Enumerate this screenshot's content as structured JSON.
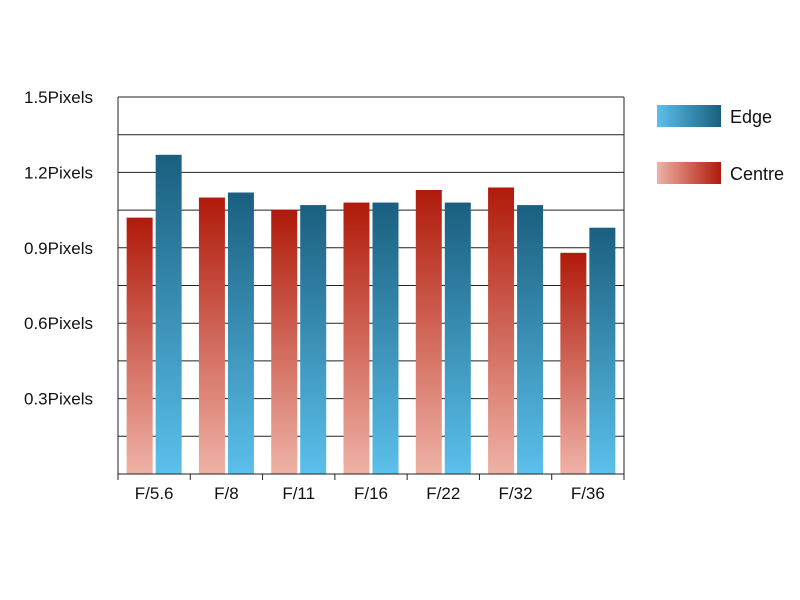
{
  "chart_data": {
    "type": "bar",
    "categories": [
      "F/5.6",
      "F/8",
      "F/11",
      "F/16",
      "F/22",
      "F/32",
      "F/36"
    ],
    "series": [
      {
        "name": "Centre",
        "values": [
          1.02,
          1.1,
          1.05,
          1.08,
          1.13,
          1.14,
          0.88
        ]
      },
      {
        "name": "Edge",
        "values": [
          1.27,
          1.12,
          1.07,
          1.08,
          1.08,
          1.07,
          0.98
        ]
      }
    ],
    "ylim": [
      0,
      1.5
    ],
    "yticks": [
      {
        "value": 0.3,
        "label": "0.3Pixels"
      },
      {
        "value": 0.6,
        "label": "0.6Pixels"
      },
      {
        "value": 0.9,
        "label": "0.9Pixels"
      },
      {
        "value": 1.2,
        "label": "1.2Pixels"
      },
      {
        "value": 1.5,
        "label": "1.5Pixels"
      }
    ],
    "minor_gridlines": [
      0.15,
      0.45,
      0.75,
      1.05,
      1.35
    ],
    "grid": true,
    "legend": {
      "placement": "right",
      "entries": [
        {
          "name": "Edge",
          "color_light": "#5bc0eb",
          "color_dark": "#1a5f7f"
        },
        {
          "name": "Centre",
          "color_light": "#efb2a6",
          "color_dark": "#b01a0a"
        }
      ]
    },
    "colors": {
      "Centre": {
        "top": "#b01a0a",
        "bottom": "#efb2a6"
      },
      "Edge": {
        "top": "#1a5f7f",
        "bottom": "#5bc0eb"
      }
    }
  }
}
